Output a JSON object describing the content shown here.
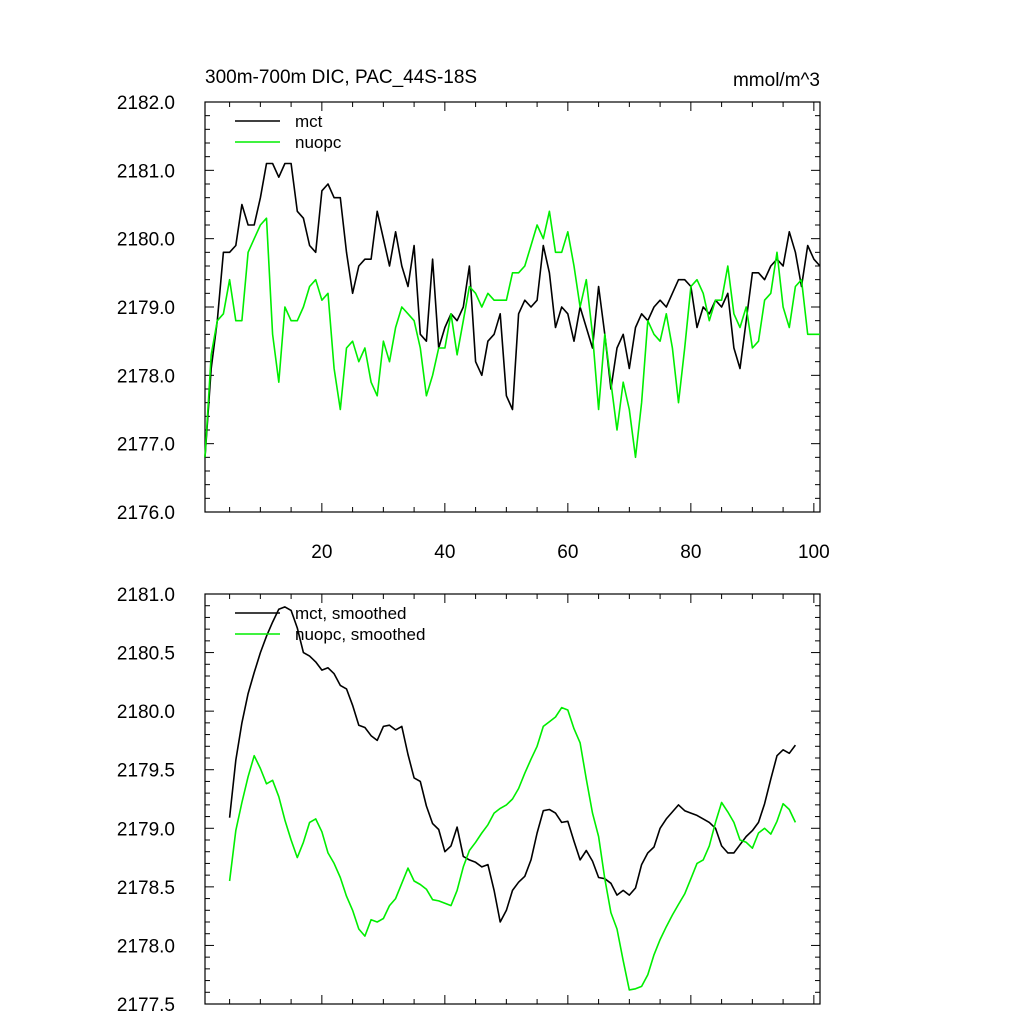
{
  "chart_data": [
    {
      "type": "line",
      "title": "300m-700m DIC, PAC_44S-18S",
      "units": "mmol/m^3",
      "xlabel": "",
      "ylabel": "",
      "xlim": [
        1,
        101
      ],
      "ylim": [
        2176.0,
        2182.0
      ],
      "yticks": [
        "2176.0",
        "2177.0",
        "2178.0",
        "2179.0",
        "2180.0",
        "2181.0",
        "2182.0"
      ],
      "xticks": [
        "20",
        "40",
        "60",
        "80",
        "100"
      ],
      "legend_position": "top-left",
      "series": [
        {
          "name": "mct",
          "color": "#000000",
          "x": [
            1,
            2,
            3,
            4,
            5,
            6,
            7,
            8,
            9,
            10,
            11,
            12,
            13,
            14,
            15,
            16,
            17,
            18,
            19,
            20,
            21,
            22,
            23,
            24,
            25,
            26,
            27,
            28,
            29,
            30,
            31,
            32,
            33,
            34,
            35,
            36,
            37,
            38,
            39,
            40,
            41,
            42,
            43,
            44,
            45,
            46,
            47,
            48,
            49,
            50,
            51,
            52,
            53,
            54,
            55,
            56,
            57,
            58,
            59,
            60,
            61,
            62,
            63,
            64,
            65,
            66,
            67,
            68,
            69,
            70,
            71,
            72,
            73,
            74,
            75,
            76,
            77,
            78,
            79,
            80,
            81,
            82,
            83,
            84,
            85,
            86,
            87,
            88,
            89,
            90,
            91,
            92,
            93,
            94,
            95,
            96,
            97,
            98,
            99,
            100,
            101
          ],
          "values": [
            2176.8,
            2178.1,
            2178.8,
            2179.8,
            2179.8,
            2179.9,
            2180.5,
            2180.2,
            2180.2,
            2180.6,
            2181.1,
            2181.1,
            2180.9,
            2181.1,
            2181.1,
            2180.4,
            2180.3,
            2179.9,
            2179.8,
            2180.7,
            2180.8,
            2180.6,
            2180.6,
            2179.8,
            2179.2,
            2179.6,
            2179.7,
            2179.7,
            2180.4,
            2180.0,
            2179.6,
            2180.1,
            2179.6,
            2179.3,
            2179.9,
            2178.6,
            2178.5,
            2179.7,
            2178.4,
            2178.7,
            2178.9,
            2178.8,
            2179.0,
            2179.6,
            2178.2,
            2178.0,
            2178.5,
            2178.6,
            2178.9,
            2177.7,
            2177.5,
            2178.9,
            2179.1,
            2179.0,
            2179.1,
            2179.9,
            2179.5,
            2178.7,
            2179.0,
            2178.9,
            2178.5,
            2179.0,
            2178.7,
            2178.4,
            2179.3,
            2178.6,
            2177.8,
            2178.4,
            2178.6,
            2178.1,
            2178.7,
            2178.9,
            2178.8,
            2179.0,
            2179.1,
            2179.0,
            2179.2,
            2179.4,
            2179.4,
            2179.3,
            2178.7,
            2179.0,
            2178.9,
            2179.1,
            2179.0,
            2179.2,
            2178.4,
            2178.1,
            2178.8,
            2179.5,
            2179.5,
            2179.4,
            2179.6,
            2179.7,
            2179.6,
            2180.1,
            2179.8,
            2179.3,
            2179.9,
            2179.7,
            2179.6
          ]
        },
        {
          "name": "nuopc",
          "color": "#00ee00",
          "x": [
            1,
            2,
            3,
            4,
            5,
            6,
            7,
            8,
            9,
            10,
            11,
            12,
            13,
            14,
            15,
            16,
            17,
            18,
            19,
            20,
            21,
            22,
            23,
            24,
            25,
            26,
            27,
            28,
            29,
            30,
            31,
            32,
            33,
            34,
            35,
            36,
            37,
            38,
            39,
            40,
            41,
            42,
            43,
            44,
            45,
            46,
            47,
            48,
            49,
            50,
            51,
            52,
            53,
            54,
            55,
            56,
            57,
            58,
            59,
            60,
            61,
            62,
            63,
            64,
            65,
            66,
            67,
            68,
            69,
            70,
            71,
            72,
            73,
            74,
            75,
            76,
            77,
            78,
            79,
            80,
            81,
            82,
            83,
            84,
            85,
            86,
            87,
            88,
            89,
            90,
            91,
            92,
            93,
            94,
            95,
            96,
            97,
            98,
            99,
            100,
            101
          ],
          "values": [
            2176.8,
            2178.3,
            2178.8,
            2178.9,
            2179.4,
            2178.8,
            2178.8,
            2179.8,
            2180.0,
            2180.2,
            2180.3,
            2178.6,
            2177.9,
            2179.0,
            2178.8,
            2178.8,
            2179.0,
            2179.3,
            2179.4,
            2179.1,
            2179.2,
            2178.1,
            2177.5,
            2178.4,
            2178.5,
            2178.2,
            2178.4,
            2177.9,
            2177.7,
            2178.5,
            2178.2,
            2178.7,
            2179.0,
            2178.9,
            2178.8,
            2178.4,
            2177.7,
            2178.0,
            2178.4,
            2178.4,
            2178.9,
            2178.3,
            2178.8,
            2179.3,
            2179.2,
            2179.0,
            2179.2,
            2179.1,
            2179.1,
            2179.1,
            2179.5,
            2179.5,
            2179.6,
            2179.9,
            2180.2,
            2180.0,
            2180.4,
            2179.8,
            2179.8,
            2180.1,
            2179.6,
            2179.0,
            2179.4,
            2178.6,
            2177.5,
            2178.6,
            2177.9,
            2177.2,
            2177.9,
            2177.5,
            2176.8,
            2177.6,
            2178.8,
            2178.6,
            2178.5,
            2178.9,
            2178.4,
            2177.6,
            2178.4,
            2179.3,
            2179.4,
            2179.2,
            2178.8,
            2179.1,
            2179.1,
            2179.6,
            2178.9,
            2178.7,
            2179.0,
            2178.4,
            2178.5,
            2179.1,
            2179.2,
            2179.8,
            2179.0,
            2178.7,
            2179.3,
            2179.4,
            2178.6,
            2178.6,
            2178.6
          ]
        }
      ]
    },
    {
      "type": "line",
      "title": "",
      "xlabel": "",
      "ylabel": "",
      "xlim": [
        1,
        101
      ],
      "ylim": [
        2177.5,
        2181.0
      ],
      "yticks": [
        "2177.5",
        "2178.0",
        "2178.5",
        "2179.0",
        "2179.5",
        "2180.0",
        "2180.5",
        "2181.0"
      ],
      "legend_position": "top-left",
      "series": [
        {
          "name": "mct, smoothed",
          "color": "#000000",
          "x": [
            5,
            6,
            7,
            8,
            9,
            10,
            11,
            12,
            13,
            14,
            15,
            16,
            17,
            18,
            19,
            20,
            21,
            22,
            23,
            24,
            25,
            26,
            27,
            28,
            29,
            30,
            31,
            32,
            33,
            34,
            35,
            36,
            37,
            38,
            39,
            40,
            41,
            42,
            43,
            44,
            45,
            46,
            47,
            48,
            49,
            50,
            51,
            52,
            53,
            54,
            55,
            56,
            57,
            58,
            59,
            60,
            61,
            62,
            63,
            64,
            65,
            66,
            67,
            68,
            69,
            70,
            71,
            72,
            73,
            74,
            75,
            76,
            77,
            78,
            79,
            80,
            81,
            82,
            83,
            84,
            85,
            86,
            87,
            88,
            89,
            90,
            91,
            92,
            93,
            94,
            95,
            96,
            97
          ],
          "values": [
            2179.09,
            2179.58,
            2179.9,
            2180.15,
            2180.33,
            2180.5,
            2180.64,
            2180.76,
            2180.87,
            2180.89,
            2180.86,
            2180.71,
            2180.5,
            2180.47,
            2180.42,
            2180.35,
            2180.37,
            2180.32,
            2180.22,
            2180.19,
            2180.05,
            2179.88,
            2179.86,
            2179.79,
            2179.75,
            2179.87,
            2179.88,
            2179.84,
            2179.87,
            2179.63,
            2179.43,
            2179.4,
            2179.19,
            2179.04,
            2178.99,
            2178.8,
            2178.85,
            2179.01,
            2178.76,
            2178.73,
            2178.71,
            2178.67,
            2178.69,
            2178.47,
            2178.2,
            2178.3,
            2178.47,
            2178.54,
            2178.59,
            2178.73,
            2178.96,
            2179.15,
            2179.16,
            2179.13,
            2179.05,
            2179.06,
            2178.89,
            2178.73,
            2178.81,
            2178.72,
            2178.58,
            2178.57,
            2178.53,
            2178.43,
            2178.47,
            2178.43,
            2178.49,
            2178.69,
            2178.79,
            2178.84,
            2179.0,
            2179.08,
            2179.14,
            2179.2,
            2179.15,
            2179.13,
            2179.11,
            2179.08,
            2179.05,
            2179.0,
            2178.85,
            2178.79,
            2178.79,
            2178.86,
            2178.93,
            2178.98,
            2179.05,
            2179.21,
            2179.42,
            2179.62,
            2179.67,
            2179.64,
            2179.71
          ]
        },
        {
          "name": "nuopc, smoothed",
          "color": "#00ee00",
          "x": [
            5,
            6,
            7,
            8,
            9,
            10,
            11,
            12,
            13,
            14,
            15,
            16,
            17,
            18,
            19,
            20,
            21,
            22,
            23,
            24,
            25,
            26,
            27,
            28,
            29,
            30,
            31,
            32,
            33,
            34,
            35,
            36,
            37,
            38,
            39,
            40,
            41,
            42,
            43,
            44,
            45,
            46,
            47,
            48,
            49,
            50,
            51,
            52,
            53,
            54,
            55,
            56,
            57,
            58,
            59,
            60,
            61,
            62,
            63,
            64,
            65,
            66,
            67,
            68,
            69,
            70,
            71,
            72,
            73,
            74,
            75,
            76,
            77,
            78,
            79,
            80,
            81,
            82,
            83,
            84,
            85,
            86,
            87,
            88,
            89,
            90,
            91,
            92,
            93,
            94,
            95,
            96,
            97
          ],
          "values": [
            2178.55,
            2178.98,
            2179.22,
            2179.44,
            2179.62,
            2179.51,
            2179.38,
            2179.41,
            2179.27,
            2179.07,
            2178.9,
            2178.75,
            2178.88,
            2179.05,
            2179.08,
            2178.97,
            2178.79,
            2178.7,
            2178.58,
            2178.42,
            2178.3,
            2178.14,
            2178.08,
            2178.22,
            2178.2,
            2178.23,
            2178.34,
            2178.4,
            2178.53,
            2178.66,
            2178.55,
            2178.52,
            2178.48,
            2178.39,
            2178.38,
            2178.36,
            2178.34,
            2178.47,
            2178.67,
            2178.81,
            2178.88,
            2178.96,
            2179.03,
            2179.13,
            2179.17,
            2179.2,
            2179.25,
            2179.34,
            2179.47,
            2179.59,
            2179.7,
            2179.87,
            2179.91,
            2179.95,
            2180.03,
            2180.01,
            2179.85,
            2179.73,
            2179.42,
            2179.13,
            2178.93,
            2178.57,
            2178.28,
            2178.14,
            2177.87,
            2177.62,
            2177.63,
            2177.65,
            2177.75,
            2177.92,
            2178.05,
            2178.16,
            2178.26,
            2178.35,
            2178.44,
            2178.57,
            2178.7,
            2178.73,
            2178.85,
            2179.05,
            2179.22,
            2179.14,
            2179.05,
            2178.9,
            2178.88,
            2178.83,
            2178.96,
            2179.0,
            2178.95,
            2179.06,
            2179.21,
            2179.16,
            2179.05
          ]
        }
      ]
    }
  ]
}
